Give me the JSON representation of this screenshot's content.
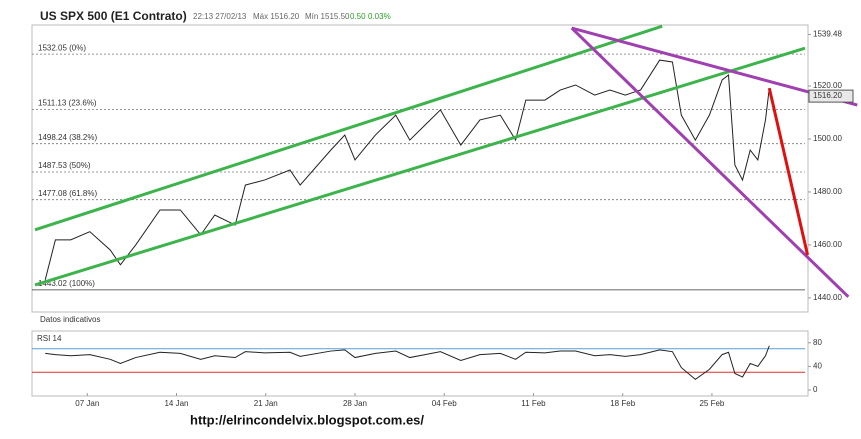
{
  "chart_data": [
    {
      "type": "line",
      "title": "US SPX 500 (E1 Contrato)",
      "info": [
        "22:13 27/02/13",
        "Máx 1516.20",
        "Mín 1515.50"
      ],
      "change": "0.50",
      "change_pct": "0.03%",
      "x": [
        3.7,
        4.5,
        5.7,
        7.2,
        8.8,
        9.6,
        10.8,
        12.7,
        14.3,
        15.9,
        17.0,
        18.6,
        19.4,
        20.9,
        22.9,
        23.7,
        26.1,
        27.2,
        28.0,
        29.6,
        31.2,
        32.3,
        33.5,
        34.7,
        36.3,
        37.8,
        39.4,
        40.6,
        41.4,
        42.9,
        44.1,
        45.3,
        46.8,
        48.0,
        49.2,
        50.4,
        51.9,
        52.9,
        53.6,
        54.7,
        55.8,
        56.8,
        57.3,
        57.8,
        58.4,
        59.0,
        59.6,
        60.2,
        60.5
      ],
      "values": [
        1446.8,
        1461.9,
        1461.9,
        1465,
        1458.1,
        1452.5,
        1460,
        1473.2,
        1473.2,
        1463.8,
        1471.3,
        1467.5,
        1482.6,
        1484.5,
        1488.3,
        1482.6,
        1495.8,
        1501.5,
        1492.1,
        1501.5,
        1509,
        1499.6,
        1505.3,
        1511,
        1497.7,
        1507.2,
        1509,
        1499.6,
        1514.7,
        1514.7,
        1518.5,
        1520.4,
        1516.6,
        1518.5,
        1516.6,
        1518.5,
        1529.8,
        1529.1,
        1509,
        1499.6,
        1509,
        1522.3,
        1524.2,
        1490.2,
        1484.5,
        1495.8,
        1492.1,
        1507.2,
        1519.2
      ],
      "color": "#222222",
      "xlim": [
        2.9,
        63.3
      ],
      "ylim": [
        1439.2,
        1542.3
      ],
      "yticks": [
        {
          "value": 1539.48,
          "label": "1539.48"
        },
        {
          "value": 1520,
          "label": "1520.00"
        },
        {
          "value": 1500,
          "label": "1500.00"
        },
        {
          "value": 1480,
          "label": "1480.00"
        },
        {
          "value": 1460,
          "label": "1460.00"
        },
        {
          "value": 1440,
          "label": "1440.00"
        }
      ],
      "last_price": {
        "value": 1516.2,
        "label": "1516.20"
      },
      "fib_levels": [
        {
          "value": 1532.05,
          "label": "1532.05 (0%)"
        },
        {
          "value": 1511.13,
          "label": "1511.13 (23.6%)"
        },
        {
          "value": 1498.24,
          "label": "1498.24 (38.2%)"
        },
        {
          "value": 1487.53,
          "label": "1487.53 (50%)"
        },
        {
          "value": 1477.08,
          "label": "1477.08 (61.8%)"
        },
        {
          "value": 1443.02,
          "label": "1443.02 (100%)"
        }
      ],
      "trendlines": [
        {
          "color": "#3cb44b",
          "x": [
            2.9,
            52.1
          ],
          "y": [
            1465.7,
            1542.6
          ]
        },
        {
          "color": "#3cb44b",
          "x": [
            2.9,
            63.3
          ],
          "y": [
            1444.9,
            1534.3
          ]
        },
        {
          "color": "#a040b0",
          "x": [
            45.0,
            67.4
          ],
          "y": [
            1541.9,
            1512.8
          ]
        },
        {
          "color": "#a040b0",
          "x": [
            45.0,
            66.7
          ],
          "y": [
            1541.9,
            1440.4
          ]
        },
        {
          "color": "#e01010",
          "x": [
            60.5,
            63.5
          ],
          "y": [
            1519.2,
            1456.2
          ]
        }
      ]
    },
    {
      "type": "line",
      "title": "RSI 14",
      "note": "Datos indicativos",
      "x": [
        3.7,
        4.5,
        5.7,
        7.2,
        8.8,
        9.6,
        10.8,
        12.7,
        14.3,
        15.9,
        17.0,
        18.6,
        19.4,
        20.9,
        22.9,
        23.7,
        26.1,
        27.2,
        28.0,
        29.6,
        31.2,
        32.3,
        33.5,
        34.7,
        36.3,
        37.8,
        39.4,
        40.6,
        41.4,
        42.9,
        44.1,
        45.3,
        46.8,
        48.0,
        49.2,
        50.4,
        51.9,
        52.9,
        53.6,
        54.7,
        55.8,
        56.8,
        57.3,
        57.8,
        58.4,
        59.0,
        59.6,
        60.2,
        60.5
      ],
      "values": [
        62,
        60,
        58,
        60,
        52,
        45,
        55,
        64,
        62,
        52,
        58,
        55,
        65,
        63,
        64,
        57,
        66,
        68,
        55,
        62,
        66,
        55,
        60,
        65,
        50,
        60,
        62,
        52,
        64,
        63,
        66,
        66,
        58,
        60,
        57,
        60,
        68,
        65,
        38,
        18,
        35,
        60,
        64,
        28,
        22,
        45,
        40,
        58,
        75
      ],
      "color": "#222222",
      "xlim": [
        2.9,
        63.3
      ],
      "ylim": [
        0,
        100
      ],
      "yticks": [
        0,
        40,
        80
      ],
      "levels": [
        {
          "value": 70,
          "color": "#5b9bd5"
        },
        {
          "value": 30,
          "color": "#e03030"
        }
      ],
      "xticks": [
        {
          "value": 7,
          "label": "07 Jan"
        },
        {
          "value": 14,
          "label": "14 Jan"
        },
        {
          "value": 21,
          "label": "21 Jan"
        },
        {
          "value": 28,
          "label": "28 Jan"
        },
        {
          "value": 35,
          "label": "04 Feb"
        },
        {
          "value": 42,
          "label": "11 Feb"
        },
        {
          "value": 49,
          "label": "18 Feb"
        },
        {
          "value": 56,
          "label": "25 Feb"
        }
      ]
    }
  ],
  "footer": "http://elrincondelvix.blogspot.com.es/"
}
